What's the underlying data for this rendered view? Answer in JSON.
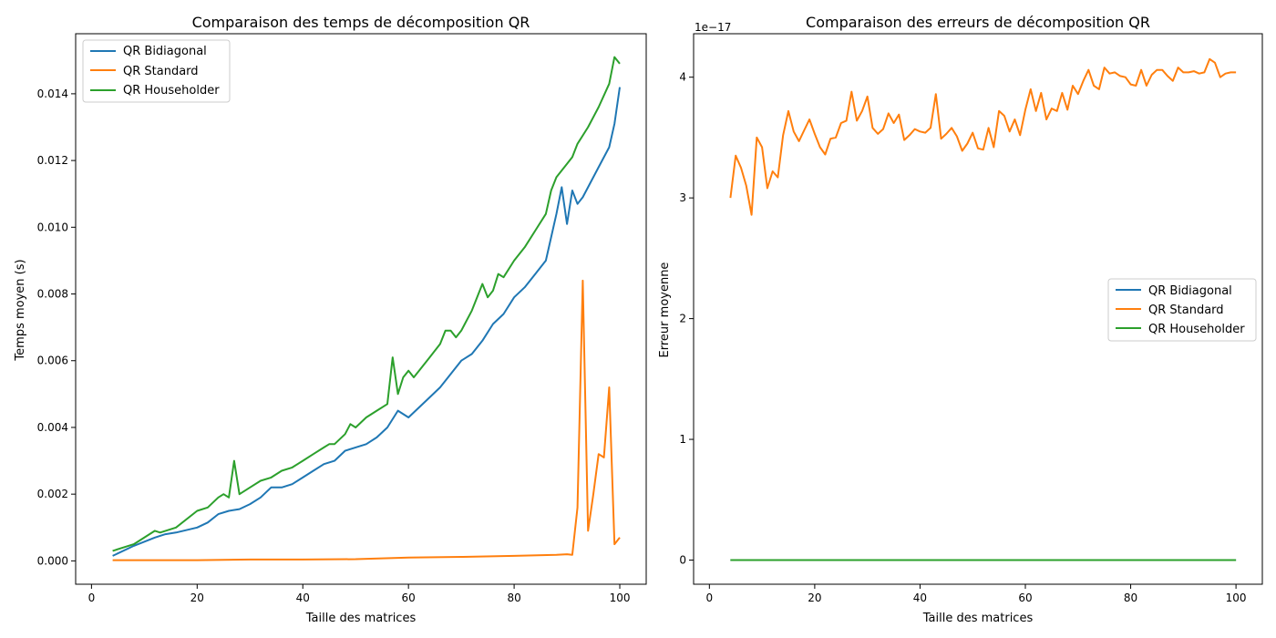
{
  "chart_data": [
    {
      "type": "line",
      "title": "Comparaison des temps de décomposition QR",
      "xlabel": "Taille des matrices",
      "ylabel": "Temps moyen (s)",
      "xlim": [
        -3,
        105
      ],
      "ylim": [
        -0.0007,
        0.0158
      ],
      "xticks": [
        0,
        20,
        40,
        60,
        80,
        100
      ],
      "xtick_labels": [
        "0",
        "20",
        "40",
        "60",
        "80",
        "100"
      ],
      "yticks": [
        0,
        0.002,
        0.004,
        0.006,
        0.008,
        0.01,
        0.012,
        0.014
      ],
      "ytick_labels": [
        "0.000",
        "0.002",
        "0.004",
        "0.006",
        "0.008",
        "0.010",
        "0.012",
        "0.014"
      ],
      "legend": "top-left",
      "grid": false,
      "series": [
        {
          "name": "QR Bidiagonal",
          "color": "#1f77b4",
          "x": [
            4,
            8,
            12,
            14,
            16,
            20,
            22,
            24,
            26,
            28,
            30,
            32,
            34,
            36,
            38,
            40,
            42,
            44,
            46,
            48,
            50,
            52,
            54,
            56,
            58,
            60,
            62,
            64,
            66,
            68,
            70,
            72,
            74,
            76,
            78,
            80,
            82,
            84,
            86,
            88,
            89,
            90,
            91,
            92,
            93,
            94,
            96,
            98,
            99,
            100
          ],
          "y": [
            0.00015,
            0.00045,
            0.0007,
            0.0008,
            0.00085,
            0.001,
            0.00115,
            0.0014,
            0.0015,
            0.00155,
            0.0017,
            0.0019,
            0.0022,
            0.0022,
            0.0023,
            0.0025,
            0.0027,
            0.0029,
            0.003,
            0.0033,
            0.0034,
            0.0035,
            0.0037,
            0.004,
            0.0045,
            0.0043,
            0.0046,
            0.0049,
            0.0052,
            0.0056,
            0.006,
            0.0062,
            0.0066,
            0.0071,
            0.0074,
            0.0079,
            0.0082,
            0.0086,
            0.009,
            0.0104,
            0.0112,
            0.0101,
            0.0111,
            0.0107,
            0.0109,
            0.0112,
            0.0118,
            0.0124,
            0.0131,
            0.0142
          ]
        },
        {
          "name": "QR Standard",
          "color": "#ff7f0e",
          "x": [
            4,
            10,
            20,
            30,
            40,
            50,
            60,
            70,
            80,
            88,
            90,
            91,
            92,
            93,
            94,
            95,
            96,
            97,
            98,
            99,
            100
          ],
          "y": [
            2e-05,
            2e-05,
            2e-05,
            4e-05,
            4e-05,
            5e-05,
            0.0001,
            0.00012,
            0.00015,
            0.00018,
            0.0002,
            0.00018,
            0.0016,
            0.0084,
            0.0009,
            0.002,
            0.0032,
            0.0031,
            0.0052,
            0.0005,
            0.0007
          ]
        },
        {
          "name": "QR Householder",
          "color": "#2ca02c",
          "x": [
            4,
            8,
            12,
            13,
            16,
            20,
            22,
            24,
            25,
            26,
            27,
            28,
            30,
            32,
            34,
            36,
            38,
            40,
            42,
            44,
            45,
            46,
            48,
            49,
            50,
            52,
            54,
            56,
            57,
            58,
            59,
            60,
            61,
            62,
            64,
            66,
            67,
            68,
            69,
            70,
            72,
            74,
            75,
            76,
            77,
            78,
            80,
            82,
            84,
            86,
            87,
            88,
            90,
            91,
            92,
            94,
            96,
            98,
            99,
            100
          ],
          "y": [
            0.0003,
            0.0005,
            0.0009,
            0.00085,
            0.001,
            0.0015,
            0.0016,
            0.0019,
            0.002,
            0.0019,
            0.003,
            0.002,
            0.0022,
            0.0024,
            0.0025,
            0.0027,
            0.0028,
            0.003,
            0.0032,
            0.0034,
            0.0035,
            0.0035,
            0.0038,
            0.0041,
            0.004,
            0.0043,
            0.0045,
            0.0047,
            0.0061,
            0.005,
            0.0055,
            0.0057,
            0.0055,
            0.0057,
            0.0061,
            0.0065,
            0.0069,
            0.0069,
            0.0067,
            0.0069,
            0.0075,
            0.0083,
            0.0079,
            0.0081,
            0.0086,
            0.0085,
            0.009,
            0.0094,
            0.0099,
            0.0104,
            0.0111,
            0.0115,
            0.0119,
            0.0121,
            0.0125,
            0.013,
            0.0136,
            0.0143,
            0.0151,
            0.0149
          ]
        }
      ]
    },
    {
      "type": "line",
      "title": "Comparaison des erreurs de décomposition QR",
      "xlabel": "Taille des matrices",
      "ylabel": "Erreur moyenne",
      "offset_label": "1e−17",
      "xlim": [
        -3,
        105
      ],
      "ylim": [
        -0.2,
        4.36
      ],
      "xticks": [
        0,
        20,
        40,
        60,
        80,
        100
      ],
      "xtick_labels": [
        "0",
        "20",
        "40",
        "60",
        "80",
        "100"
      ],
      "yticks": [
        0,
        1,
        2,
        3,
        4
      ],
      "ytick_labels": [
        "0",
        "1",
        "2",
        "3",
        "4"
      ],
      "legend": "center-right",
      "grid": false,
      "series": [
        {
          "name": "QR Bidiagonal",
          "color": "#1f77b4",
          "x": [
            4,
            100
          ],
          "y": [
            0,
            0
          ]
        },
        {
          "name": "QR Standard",
          "color": "#ff7f0e",
          "x": [
            4,
            5,
            6,
            7,
            8,
            9,
            10,
            11,
            12,
            13,
            14,
            15,
            16,
            17,
            18,
            19,
            20,
            21,
            22,
            23,
            24,
            25,
            26,
            27,
            28,
            29,
            30,
            31,
            32,
            33,
            34,
            35,
            36,
            37,
            38,
            39,
            40,
            41,
            42,
            43,
            44,
            45,
            46,
            47,
            48,
            49,
            50,
            51,
            52,
            53,
            54,
            55,
            56,
            57,
            58,
            59,
            60,
            61,
            62,
            63,
            64,
            65,
            66,
            67,
            68,
            69,
            70,
            71,
            72,
            73,
            74,
            75,
            76,
            77,
            78,
            79,
            80,
            81,
            82,
            83,
            84,
            85,
            86,
            87,
            88,
            89,
            90,
            91,
            92,
            93,
            94,
            95,
            96,
            97,
            98,
            99,
            100
          ],
          "y": [
            3.0,
            3.35,
            3.25,
            3.1,
            2.86,
            3.5,
            3.42,
            3.08,
            3.22,
            3.17,
            3.52,
            3.72,
            3.55,
            3.47,
            3.56,
            3.65,
            3.53,
            3.42,
            3.36,
            3.49,
            3.5,
            3.62,
            3.64,
            3.88,
            3.64,
            3.72,
            3.84,
            3.58,
            3.53,
            3.57,
            3.7,
            3.62,
            3.69,
            3.48,
            3.52,
            3.57,
            3.55,
            3.54,
            3.58,
            3.86,
            3.49,
            3.53,
            3.58,
            3.51,
            3.39,
            3.45,
            3.54,
            3.41,
            3.4,
            3.58,
            3.42,
            3.72,
            3.68,
            3.55,
            3.65,
            3.52,
            3.73,
            3.9,
            3.72,
            3.87,
            3.65,
            3.74,
            3.72,
            3.87,
            3.73,
            3.93,
            3.86,
            3.97,
            4.06,
            3.93,
            3.9,
            4.08,
            4.03,
            4.04,
            4.01,
            4.0,
            3.94,
            3.93,
            4.06,
            3.93,
            4.02,
            4.06,
            4.06,
            4.01,
            3.97,
            4.08,
            4.04,
            4.04,
            4.05,
            4.03,
            4.04,
            4.15,
            4.12,
            4.0,
            4.03,
            4.04,
            4.04
          ]
        },
        {
          "name": "QR Householder",
          "color": "#2ca02c",
          "x": [
            4,
            100
          ],
          "y": [
            0,
            0
          ]
        }
      ]
    }
  ]
}
